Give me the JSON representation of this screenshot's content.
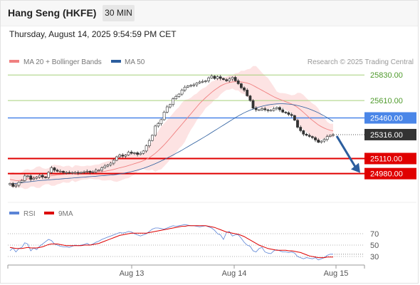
{
  "header": {
    "title": "Hang Seng (HKFE)",
    "timeframe": "30 MIN",
    "datetime": "Thursday, August 14, 2025 9:54:59 PM CET"
  },
  "colors": {
    "ma20": "#f08080",
    "ma50": "#2c5e9e",
    "band_fill": "#fcd9d9",
    "level_green": "#a6d07a",
    "level_blue": "#4a86e8",
    "level_red": "#e00000",
    "price_tag": "#333333",
    "rsi": "#5b84d6",
    "rsi_ma": "#dd0000",
    "arrow": "#2c5e9e"
  },
  "chart_data": [
    {
      "type": "candlestick",
      "title": "Hang Seng (HKFE)",
      "timeframe": "30 MIN",
      "legend": [
        {
          "name": "MA 20 + Bollinger Bands",
          "color": "#f08080"
        },
        {
          "name": "MA 50",
          "color": "#2c5e9e"
        }
      ],
      "credit": "Research © 2025 Trading Central",
      "x_ticks": [
        "Aug 13",
        "Aug 14",
        "Aug 15"
      ],
      "levels": [
        {
          "value": 25830,
          "label": "25830.00",
          "kind": "resistance",
          "color": "#a6d07a"
        },
        {
          "value": 25610,
          "label": "25610.00",
          "kind": "resistance",
          "color": "#a6d07a"
        },
        {
          "value": 25460,
          "label": "25460.00",
          "kind": "pivot",
          "color": "#4a86e8"
        },
        {
          "value": 25316,
          "label": "25316.00",
          "kind": "last",
          "color": "#333333"
        },
        {
          "value": 25110,
          "label": "25110.00",
          "kind": "support",
          "color": "#e00000"
        },
        {
          "value": 24980,
          "label": "24980.00",
          "kind": "support",
          "color": "#e00000"
        }
      ],
      "close": [
        24895,
        24870,
        24880,
        24905,
        24920,
        24960,
        24960,
        24930,
        24940,
        24950,
        24965,
        24950,
        24945,
        24990,
        25030,
        25010,
        25000,
        25000,
        24990,
        24990,
        24985,
        24990,
        24990,
        24985,
        24990,
        24995,
        25000,
        24990,
        24995,
        25010,
        25010,
        25030,
        25045,
        25055,
        25070,
        25095,
        25125,
        25140,
        25130,
        25140,
        25165,
        25155,
        25160,
        25145,
        25155,
        25175,
        25220,
        25265,
        25310,
        25390,
        25410,
        25445,
        25510,
        25555,
        25575,
        25625,
        25645,
        25665,
        25700,
        25725,
        25735,
        25740,
        25745,
        25760,
        25770,
        25775,
        25780,
        25805,
        25820,
        25800,
        25815,
        25800,
        25790,
        25780,
        25795,
        25810,
        25780,
        25755,
        25720,
        25700,
        25650,
        25610,
        25545,
        25530,
        25530,
        25540,
        25530,
        25525,
        25525,
        25540,
        25550,
        25530,
        25510,
        25505,
        25490,
        25480,
        25440,
        25380,
        25350,
        25320,
        25310,
        25300,
        25290,
        25270,
        25250,
        25260,
        25275,
        25300,
        25310,
        25316
      ],
      "series": [
        {
          "name": "MA 20",
          "values": [
            24930,
            24925,
            24920,
            24920,
            24925,
            24930,
            24935,
            24940,
            24945,
            24948,
            24950,
            24952,
            24955,
            24958,
            24962,
            24966,
            24970,
            24972,
            24973,
            24974,
            24975,
            24977,
            24980,
            24983,
            24985,
            24987,
            24990,
            24992,
            24993,
            24994,
            24995,
            24997,
            25000,
            25005,
            25010,
            25016,
            25023,
            25030,
            25036,
            25042,
            25050,
            25058,
            25066,
            25074,
            25082,
            25092,
            25104,
            25118,
            25135,
            25155,
            25178,
            25202,
            25228,
            25256,
            25285,
            25315,
            25345,
            25375,
            25405,
            25435,
            25465,
            25495,
            25525,
            25555,
            25585,
            25610,
            25635,
            25658,
            25680,
            25700,
            25718,
            25735,
            25748,
            25758,
            25765,
            25770,
            25772,
            25772,
            25770,
            25766,
            25760,
            25752,
            25740,
            25726,
            25712,
            25698,
            25684,
            25670,
            25656,
            25642,
            25630,
            25620,
            25610,
            25600,
            25590,
            25580,
            25566,
            25550,
            25530,
            25508,
            25485,
            25460,
            25440,
            25420,
            25400,
            25385,
            25372,
            25362,
            25354,
            25348
          ]
        },
        {
          "name": "MA 50",
          "values": [
            24890,
            24893,
            24896,
            24899,
            24902,
            24905,
            24908,
            24911,
            24914,
            24917,
            24920,
            24922,
            24924,
            24926,
            24928,
            24930,
            24932,
            24934,
            24936,
            24938,
            24940,
            24942,
            24944,
            24946,
            24948,
            24950,
            24952,
            24954,
            24956,
            24958,
            24960,
            24962,
            24964,
            24966,
            24968,
            24970,
            24973,
            24977,
            24981,
            24986,
            24991,
            24997,
            25003,
            25010,
            25018,
            25026,
            25035,
            25045,
            25055,
            25066,
            25077,
            25089,
            25101,
            25114,
            25127,
            25140,
            25154,
            25168,
            25182,
            25197,
            25212,
            25227,
            25242,
            25257,
            25272,
            25287,
            25302,
            25318,
            25334,
            25350,
            25366,
            25382,
            25398,
            25414,
            25430,
            25446,
            25462,
            25477,
            25491,
            25504,
            25516,
            25527,
            25537,
            25546,
            25554,
            25561,
            25567,
            25572,
            25576,
            25579,
            25581,
            25582,
            25582,
            25581,
            25579,
            25576,
            25572,
            25567,
            25561,
            25554,
            25546,
            25537,
            25527,
            25516,
            25504,
            25491,
            25477,
            25462,
            25446,
            25430
          ]
        }
      ],
      "projection": {
        "from": 25316,
        "to": 24980,
        "direction": "down"
      }
    },
    {
      "type": "line",
      "panel": "RSI",
      "legend": [
        {
          "name": "RSI",
          "color": "#5b84d6"
        },
        {
          "name": "9MA",
          "color": "#dd0000"
        }
      ],
      "y_ticks": [
        "70",
        "50",
        "30"
      ],
      "series": [
        {
          "name": "RSI",
          "values": [
            40,
            45,
            38,
            44,
            46,
            54,
            52,
            40,
            45,
            42,
            48,
            52,
            56,
            60,
            58,
            52,
            50,
            48,
            47,
            47,
            46,
            48,
            50,
            49,
            50,
            51,
            53,
            50,
            52,
            55,
            57,
            60,
            62,
            64,
            66,
            68,
            70,
            72,
            71,
            72,
            74,
            73,
            70,
            68,
            66,
            68,
            70,
            74,
            78,
            80,
            80,
            79,
            78,
            80,
            82,
            84,
            83,
            84,
            85,
            86,
            85,
            84,
            84,
            83,
            82,
            83,
            84,
            82,
            80,
            76,
            70,
            68,
            60,
            72,
            74,
            66,
            68,
            68,
            62,
            55,
            50,
            48,
            40,
            38,
            44,
            46,
            38,
            36,
            35,
            40,
            42,
            40,
            38,
            38,
            37,
            38,
            36,
            30,
            28,
            26,
            28,
            27,
            26,
            28,
            24,
            26,
            28,
            32,
            34,
            34
          ]
        },
        {
          "name": "9MA",
          "values": [
            46,
            45,
            44,
            44,
            44,
            45,
            46,
            45,
            45,
            45,
            46,
            47,
            49,
            51,
            52,
            52,
            52,
            51,
            50,
            49,
            49,
            49,
            49,
            49,
            49,
            50,
            50,
            50,
            51,
            52,
            53,
            55,
            57,
            59,
            61,
            63,
            65,
            67,
            68,
            69,
            70,
            71,
            71,
            71,
            71,
            71,
            71,
            72,
            73,
            74,
            75,
            76,
            77,
            78,
            79,
            80,
            81,
            82,
            83,
            83,
            84,
            84,
            84,
            84,
            84,
            84,
            84,
            83,
            82,
            81,
            79,
            77,
            75,
            73,
            72,
            71,
            70,
            69,
            67,
            65,
            62,
            59,
            56,
            53,
            50,
            48,
            46,
            44,
            43,
            42,
            41,
            41,
            41,
            41,
            40,
            40,
            39,
            38,
            37,
            35,
            33,
            31,
            30,
            29,
            28,
            28,
            28,
            29,
            29,
            29
          ]
        }
      ]
    }
  ]
}
